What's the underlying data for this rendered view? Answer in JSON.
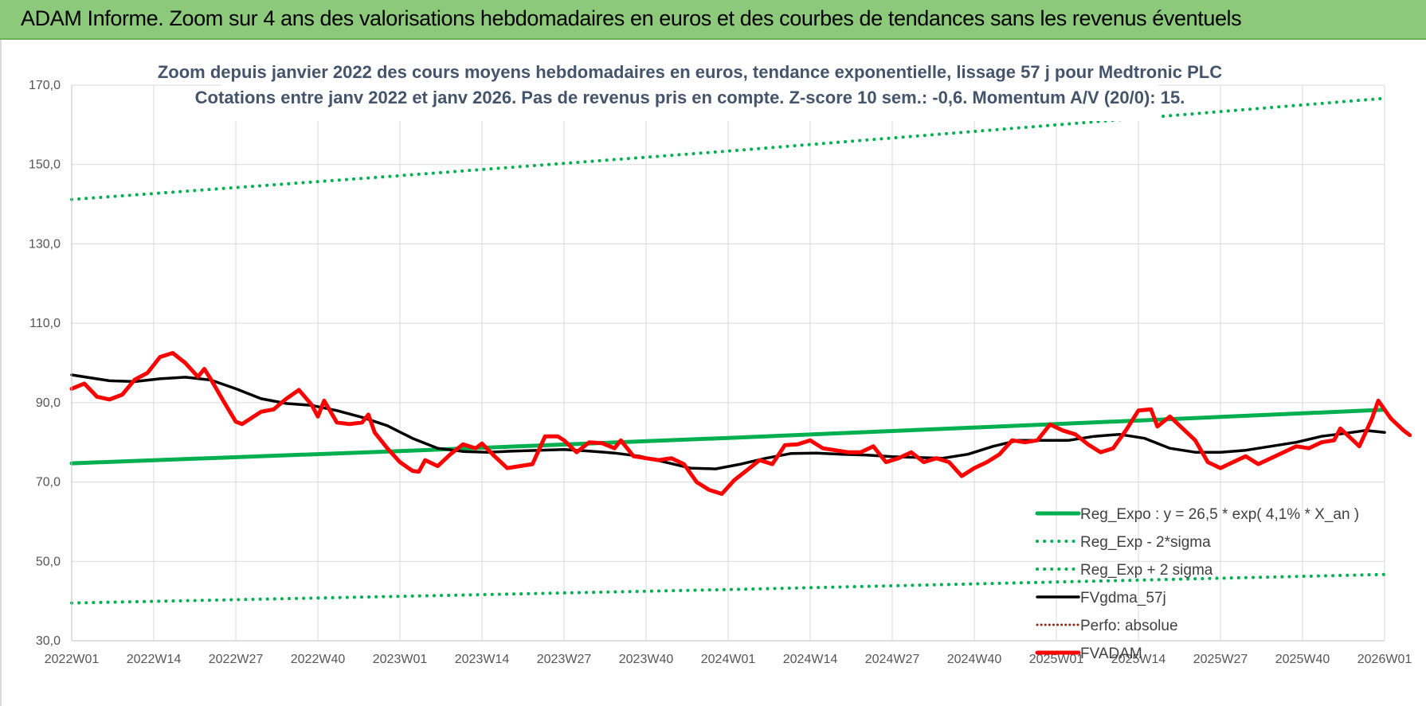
{
  "header": {
    "title": "ADAM Informe. Zoom sur 4 ans des valorisations hebdomadaires en euros et des courbes de tendances sans les revenus éventuels"
  },
  "chart_data": {
    "type": "line",
    "title_line1": "Zoom depuis janvier 2022 des cours moyens hebdomadaires en euros, tendance exponentielle, lissage 57 j pour Medtronic PLC",
    "title_line2": "Cotations entre janv 2022 et janv 2026. Pas de revenus pris en compte. Z-score 10 sem.: -0,6. Momentum A/V (20/0): 15.",
    "ylim": [
      30,
      170
    ],
    "y_ticks": [
      "30,0",
      "50,0",
      "70,0",
      "90,0",
      "110,0",
      "130,0",
      "150,0",
      "170,0"
    ],
    "x_ticks": [
      "2022W01",
      "2022W14",
      "2022W27",
      "2022W40",
      "2023W01",
      "2023W14",
      "2023W27",
      "2023W40",
      "2024W01",
      "2024W14",
      "2024W27",
      "2024W40",
      "2025W01",
      "2025W14",
      "2025W27",
      "2025W40",
      "2026W01"
    ],
    "x_tick_interval_weeks": 13,
    "total_weeks": 208,
    "grid": true,
    "legend_position": "bottom-right",
    "colors": {
      "reg_expo": "#00b050",
      "reg_bands": "#00b050",
      "fvgdma": "#000000",
      "perfo": "#8b2c1a",
      "fvadam": "#ff0000",
      "grid": "#d9d9d9",
      "title": "#44546a"
    },
    "series": [
      {
        "name": "Reg_Expo : y = 26,5 * exp( 4,1% * X_an )",
        "style": "solid",
        "key": "reg_expo",
        "points": [
          [
            0,
            74.7
          ],
          [
            52,
            77.8
          ],
          [
            104,
            81.1
          ],
          [
            156,
            84.6
          ],
          [
            208,
            88.2
          ]
        ]
      },
      {
        "name": "Reg_Exp - 2*sigma",
        "style": "dotted",
        "key": "reg_lower",
        "points": [
          [
            0,
            39.5
          ],
          [
            52,
            41.2
          ],
          [
            104,
            42.9
          ],
          [
            156,
            44.8
          ],
          [
            208,
            46.7
          ]
        ]
      },
      {
        "name": "Reg_Exp + 2 sigma",
        "style": "dotted",
        "key": "reg_upper",
        "points": [
          [
            0,
            141.2
          ],
          [
            52,
            147.2
          ],
          [
            104,
            153.4
          ],
          [
            156,
            160.0
          ],
          [
            208,
            166.7
          ]
        ]
      },
      {
        "name": "FVgdma_57j",
        "style": "solid",
        "key": "fvgdma",
        "points": [
          [
            0,
            97.0
          ],
          [
            6,
            95.5
          ],
          [
            10,
            95.3
          ],
          [
            14,
            96.0
          ],
          [
            18,
            96.4
          ],
          [
            22,
            95.7
          ],
          [
            26,
            93.5
          ],
          [
            30,
            91.0
          ],
          [
            34,
            89.8
          ],
          [
            38,
            89.3
          ],
          [
            42,
            88.0
          ],
          [
            46,
            86.3
          ],
          [
            50,
            84.2
          ],
          [
            54,
            81.0
          ],
          [
            58,
            78.5
          ],
          [
            62,
            77.7
          ],
          [
            66,
            77.5
          ],
          [
            70,
            77.8
          ],
          [
            74,
            78.0
          ],
          [
            78,
            78.2
          ],
          [
            82,
            77.8
          ],
          [
            86,
            77.3
          ],
          [
            90,
            76.5
          ],
          [
            94,
            75.0
          ],
          [
            98,
            73.5
          ],
          [
            102,
            73.3
          ],
          [
            106,
            74.5
          ],
          [
            110,
            76.0
          ],
          [
            114,
            77.2
          ],
          [
            118,
            77.3
          ],
          [
            122,
            77.0
          ],
          [
            126,
            76.8
          ],
          [
            130,
            76.4
          ],
          [
            134,
            76.2
          ],
          [
            138,
            76.0
          ],
          [
            142,
            77.0
          ],
          [
            146,
            79.0
          ],
          [
            150,
            80.5
          ],
          [
            154,
            80.5
          ],
          [
            158,
            80.5
          ],
          [
            162,
            81.5
          ],
          [
            166,
            82.0
          ],
          [
            170,
            81.0
          ],
          [
            174,
            78.5
          ],
          [
            178,
            77.5
          ],
          [
            182,
            77.5
          ],
          [
            186,
            78.0
          ],
          [
            190,
            79.0
          ],
          [
            194,
            80.0
          ],
          [
            198,
            81.5
          ],
          [
            202,
            82.3
          ],
          [
            205,
            83.0
          ],
          [
            208,
            82.5
          ]
        ]
      },
      {
        "name": "Perfo: absolue",
        "style": "dotted",
        "key": "perfo",
        "points": []
      },
      {
        "name": "FVADAM",
        "style": "solid-thick",
        "key": "fvadam",
        "points": [
          [
            0,
            93.5
          ],
          [
            2,
            94.8
          ],
          [
            4,
            91.5
          ],
          [
            6,
            90.8
          ],
          [
            8,
            92.0
          ],
          [
            10,
            95.8
          ],
          [
            12,
            97.5
          ],
          [
            14,
            101.5
          ],
          [
            16,
            102.5
          ],
          [
            18,
            100.0
          ],
          [
            20,
            96.5
          ],
          [
            21,
            98.5
          ],
          [
            22,
            96.0
          ],
          [
            24,
            90.5
          ],
          [
            26,
            85.2
          ],
          [
            27,
            84.6
          ],
          [
            30,
            87.7
          ],
          [
            32,
            88.3
          ],
          [
            34,
            91.0
          ],
          [
            36,
            93.2
          ],
          [
            38,
            89.5
          ],
          [
            39,
            86.5
          ],
          [
            40,
            90.5
          ],
          [
            42,
            85.0
          ],
          [
            44,
            84.6
          ],
          [
            46,
            85.0
          ],
          [
            47,
            87.0
          ],
          [
            48,
            82.5
          ],
          [
            50,
            78.5
          ],
          [
            52,
            75.0
          ],
          [
            54,
            72.8
          ],
          [
            55,
            72.6
          ],
          [
            56,
            75.5
          ],
          [
            58,
            74.0
          ],
          [
            60,
            77.0
          ],
          [
            62,
            79.5
          ],
          [
            64,
            78.5
          ],
          [
            65,
            79.7
          ],
          [
            67,
            76.5
          ],
          [
            69,
            73.5
          ],
          [
            71,
            74.0
          ],
          [
            73,
            74.5
          ],
          [
            75,
            81.5
          ],
          [
            77,
            81.5
          ],
          [
            78,
            80.5
          ],
          [
            80,
            77.5
          ],
          [
            82,
            80.0
          ],
          [
            84,
            79.8
          ],
          [
            86,
            78.5
          ],
          [
            87,
            80.5
          ],
          [
            89,
            76.5
          ],
          [
            91,
            76.0
          ],
          [
            93,
            75.5
          ],
          [
            95,
            76.0
          ],
          [
            97,
            74.5
          ],
          [
            99,
            70.0
          ],
          [
            101,
            68.0
          ],
          [
            103,
            67.0
          ],
          [
            105,
            70.5
          ],
          [
            107,
            73.0
          ],
          [
            109,
            75.5
          ],
          [
            111,
            74.5
          ],
          [
            113,
            79.3
          ],
          [
            115,
            79.5
          ],
          [
            117,
            80.5
          ],
          [
            119,
            78.5
          ],
          [
            121,
            78.0
          ],
          [
            123,
            77.5
          ],
          [
            125,
            77.5
          ],
          [
            127,
            79.0
          ],
          [
            129,
            75.0
          ],
          [
            131,
            76.0
          ],
          [
            133,
            77.5
          ],
          [
            135,
            75.0
          ],
          [
            137,
            76.0
          ],
          [
            139,
            75.0
          ],
          [
            141,
            71.5
          ],
          [
            143,
            73.5
          ],
          [
            145,
            75.0
          ],
          [
            147,
            77.0
          ],
          [
            149,
            80.5
          ],
          [
            151,
            80.0
          ],
          [
            153,
            80.5
          ],
          [
            155,
            84.5
          ],
          [
            157,
            83.0
          ],
          [
            159,
            82.0
          ],
          [
            161,
            79.5
          ],
          [
            163,
            77.5
          ],
          [
            165,
            78.5
          ],
          [
            167,
            83.0
          ],
          [
            169,
            88.0
          ],
          [
            171,
            88.3
          ],
          [
            172,
            84.0
          ],
          [
            174,
            86.5
          ],
          [
            176,
            83.5
          ],
          [
            178,
            80.5
          ],
          [
            180,
            75.0
          ],
          [
            182,
            73.5
          ],
          [
            184,
            75.0
          ],
          [
            186,
            76.5
          ],
          [
            188,
            74.5
          ],
          [
            190,
            76.0
          ],
          [
            192,
            77.5
          ],
          [
            194,
            79.0
          ],
          [
            196,
            78.5
          ],
          [
            198,
            80.0
          ],
          [
            200,
            80.5
          ],
          [
            201,
            83.5
          ],
          [
            203,
            80.5
          ],
          [
            204,
            79.0
          ],
          [
            206,
            86.0
          ],
          [
            207,
            90.5
          ],
          [
            209,
            86.0
          ],
          [
            211,
            83.0
          ],
          [
            212,
            81.8
          ]
        ]
      }
    ]
  }
}
